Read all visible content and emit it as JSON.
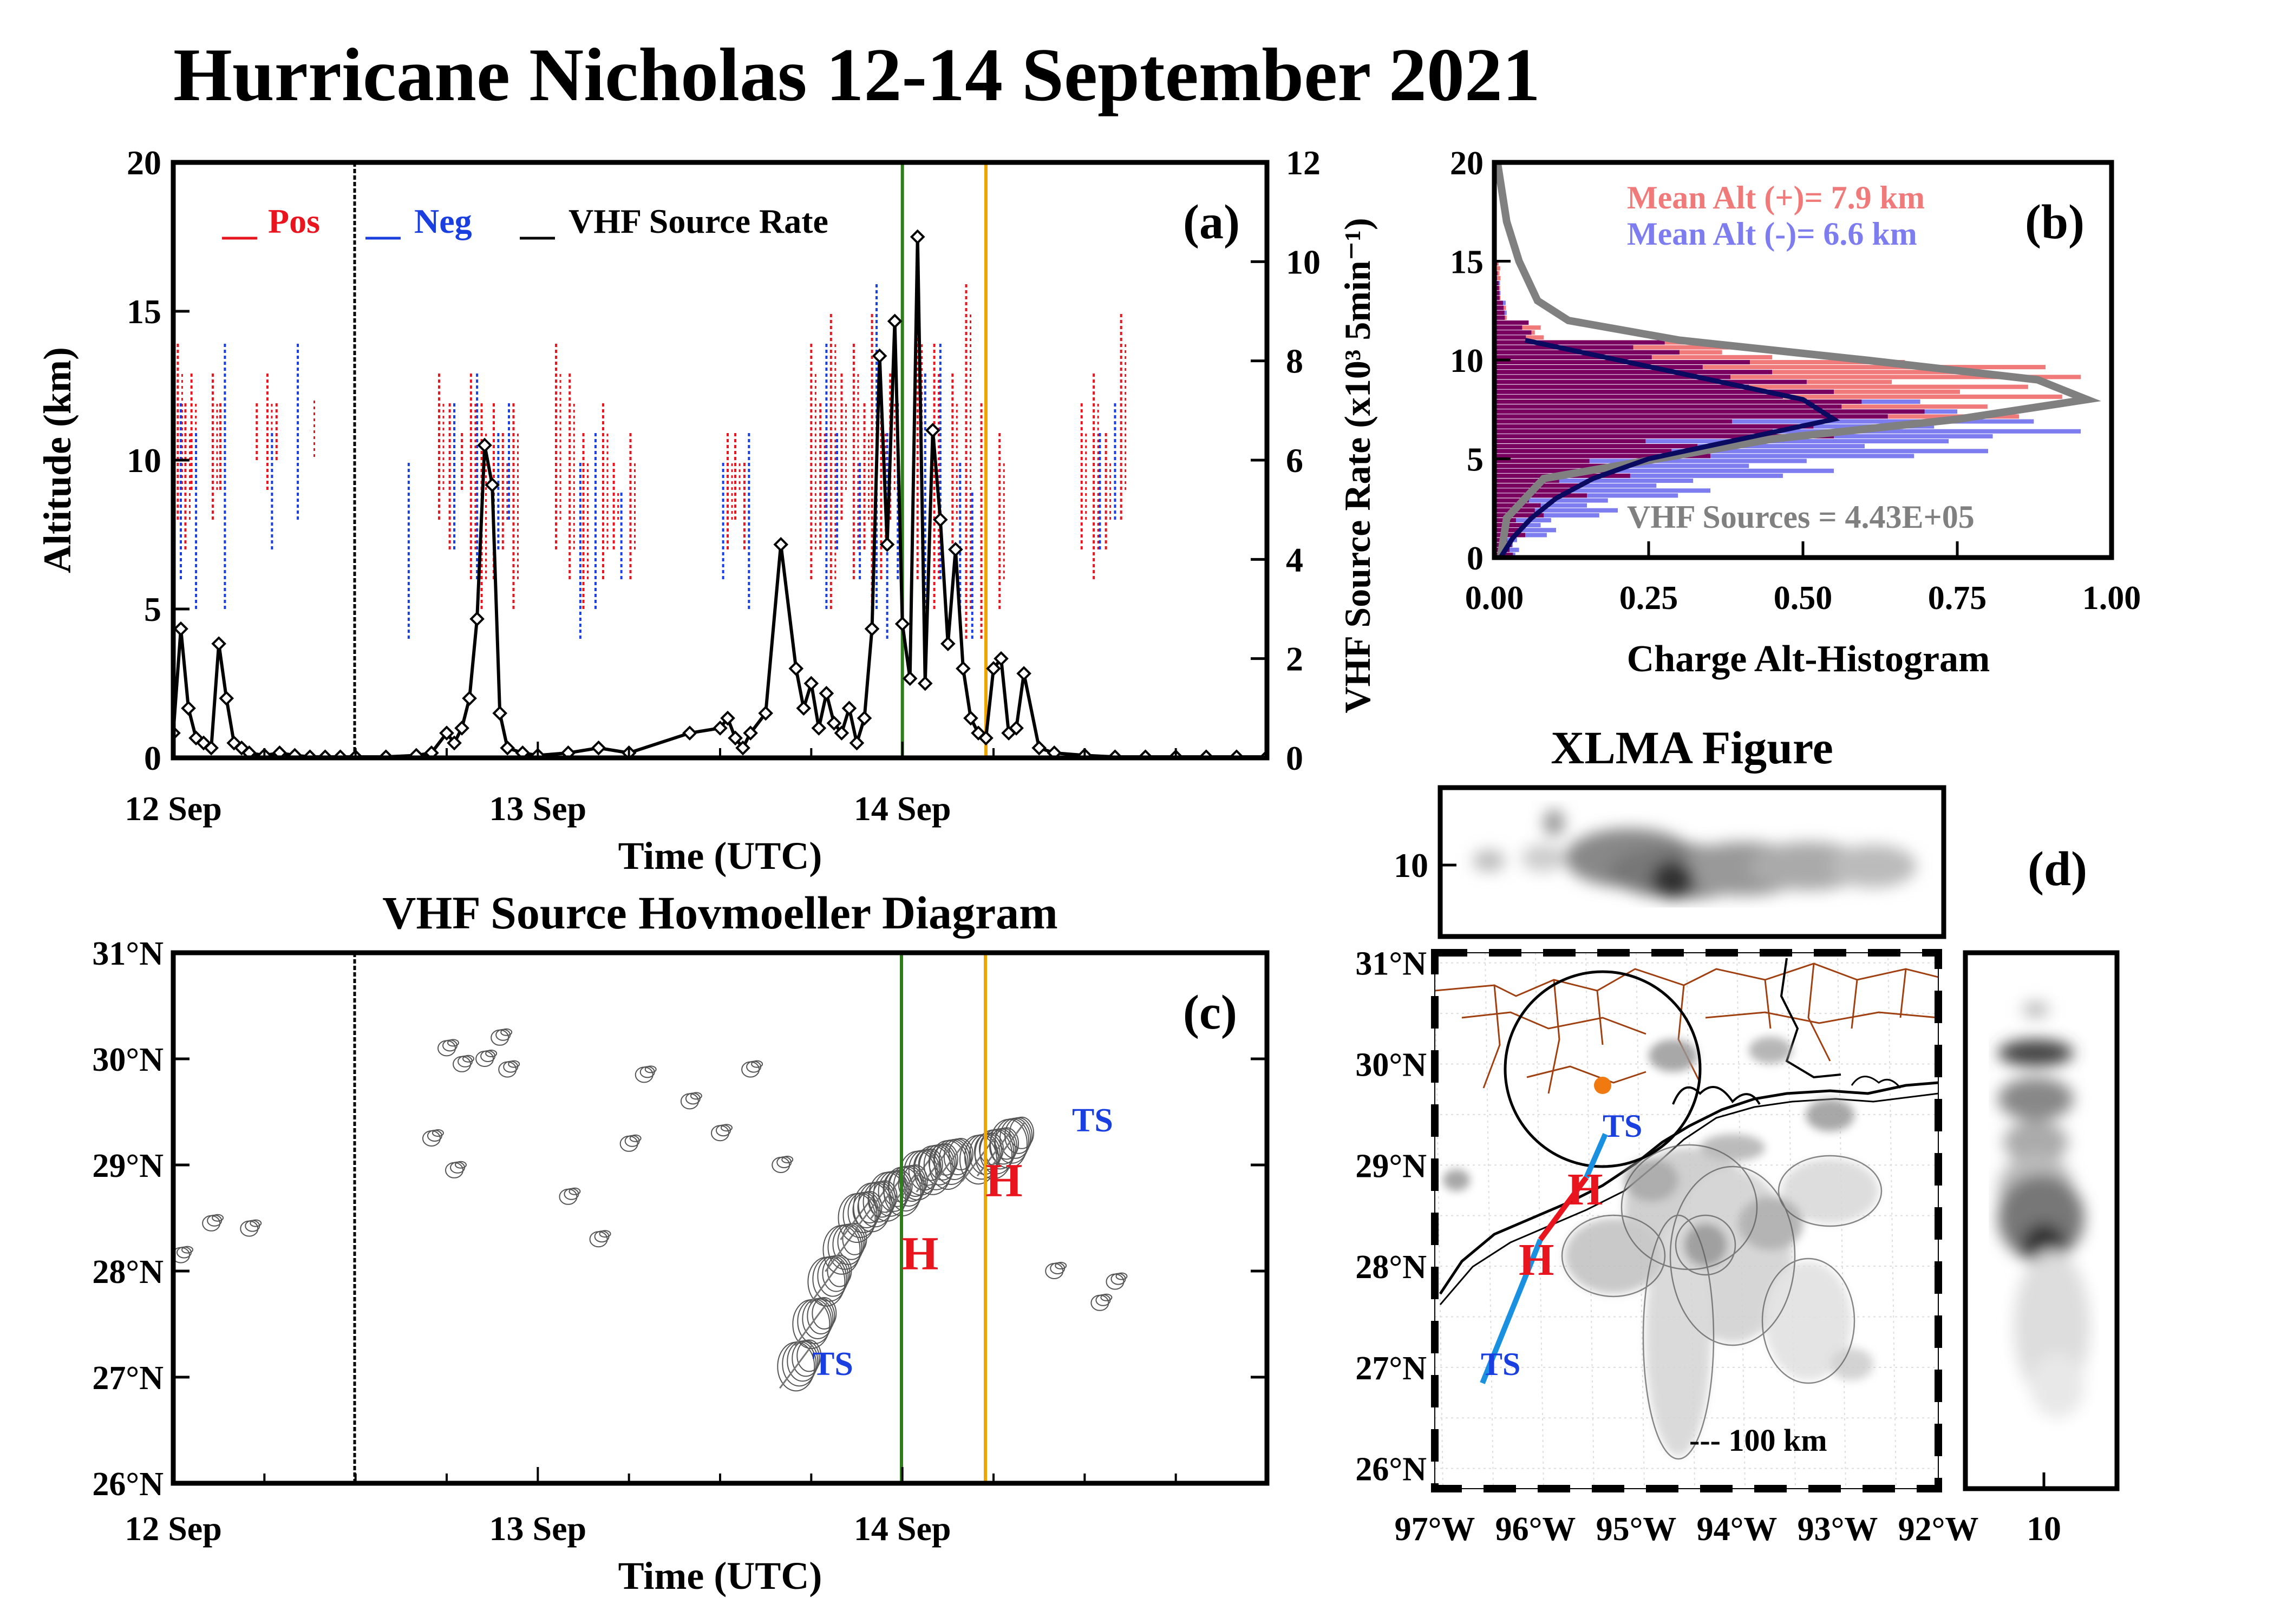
{
  "title": "Hurricane Nicholas 12-14 September 2021",
  "colors": {
    "pos": "#e8141e",
    "neg": "#1a3fe0",
    "vhf": "#000000",
    "green_marker": "#2e7d1a",
    "orange_marker": "#f0a400",
    "hist_pos": "#f07a7a",
    "hist_neg": "#7d7df0",
    "hist_overlap": "#7a0060",
    "vhf_curve": "#808080",
    "neg_curve": "#0a0a60",
    "track_h": "#e8141e",
    "track_ts": "#1a90e0",
    "label_ts": "#1a3fe0",
    "center_dot": "#f07a10"
  },
  "panel_a": {
    "label": "(a)",
    "ylabel": "Altitude (km)",
    "y2label": "VHF Source Rate (x10³ 5min⁻¹)",
    "xlabel": "Time (UTC)",
    "legend": [
      {
        "key": "pos",
        "text": "Pos"
      },
      {
        "key": "neg",
        "text": "Neg"
      },
      {
        "key": "vhf",
        "text": "VHF Source Rate"
      }
    ],
    "yticks": [
      "0",
      "5",
      "10",
      "15",
      "20"
    ],
    "y2ticks": [
      "0",
      "2",
      "4",
      "6",
      "8",
      "10",
      "12"
    ],
    "xticks": [
      "12 Sep",
      "13 Sep",
      "14 Sep"
    ]
  },
  "panel_b": {
    "label": "(b)",
    "xlabel": "Charge Alt-Histogram",
    "xticks": [
      "0.00",
      "0.25",
      "0.50",
      "0.75",
      "1.00"
    ],
    "yticks": [
      "0",
      "5",
      "10",
      "15",
      "20"
    ],
    "mean_pos": "Mean Alt (+)=  7.9 km",
    "mean_neg": "Mean Alt (-)=  6.6 km",
    "vhf_sources": "VHF Sources =  4.43E+05"
  },
  "panel_c": {
    "title": "VHF Source Hovmoeller Diagram",
    "label": "(c)",
    "xlabel": "Time (UTC)",
    "xticks": [
      "12 Sep",
      "13 Sep",
      "14 Sep"
    ],
    "yticks": [
      "26°N",
      "27°N",
      "28°N",
      "29°N",
      "30°N",
      "31°N"
    ],
    "markers": [
      {
        "text": "TS",
        "kind": "ts"
      },
      {
        "text": "H",
        "kind": "h"
      },
      {
        "text": "H",
        "kind": "h"
      },
      {
        "text": "TS",
        "kind": "ts"
      }
    ]
  },
  "panel_d": {
    "title": "XLMA Figure",
    "label": "(d)",
    "top_ytick": "10",
    "right_xtick": "10",
    "scale": "--- 100 km",
    "yticks": [
      "26°N",
      "27°N",
      "28°N",
      "29°N",
      "30°N",
      "31°N"
    ],
    "xticks": [
      "97°W",
      "96°W",
      "95°W",
      "94°W",
      "93°W",
      "92°W"
    ],
    "track_labels": [
      {
        "text": "TS",
        "kind": "ts"
      },
      {
        "text": "H",
        "kind": "h"
      },
      {
        "text": "H",
        "kind": "h"
      },
      {
        "text": "TS",
        "kind": "ts"
      }
    ]
  },
  "chart_data": [
    {
      "panel": "a",
      "type": "line",
      "x_unit": "hours since 12 Sep 00 UTC",
      "xlim": [
        0,
        72
      ],
      "ylim": [
        0,
        20
      ],
      "y2lim": [
        0,
        12
      ],
      "markers_at_hours": {
        "black": 12,
        "green": 48,
        "orange": 53.5
      },
      "series": [
        {
          "name": "VHF Source Rate",
          "x": [
            0,
            0.5,
            1,
            1.5,
            2,
            2.5,
            3,
            3.5,
            4,
            4.5,
            5,
            6,
            7,
            8,
            9,
            10,
            11,
            12,
            14,
            16,
            17,
            18,
            18.5,
            19,
            19.5,
            20,
            20.5,
            21,
            21.5,
            22,
            23,
            24,
            26,
            28,
            30,
            34,
            36,
            36.5,
            37,
            37.5,
            38,
            39,
            40,
            41,
            41.5,
            42,
            42.5,
            43,
            43.5,
            44,
            44.5,
            45,
            45.5,
            46,
            46.5,
            47,
            47.5,
            48,
            48.5,
            49,
            49.5,
            50,
            50.5,
            51,
            51.5,
            52,
            52.5,
            53,
            53.5,
            54,
            54.5,
            55,
            55.5,
            56,
            57,
            58,
            60,
            62,
            64,
            66,
            68,
            70,
            72
          ],
          "y": [
            0.5,
            2.6,
            1.0,
            0.4,
            0.3,
            0.2,
            2.3,
            1.2,
            0.3,
            0.2,
            0.1,
            0.05,
            0.1,
            0.05,
            0.02,
            0.02,
            0.02,
            0.02,
            0.02,
            0.05,
            0.1,
            0.5,
            0.3,
            0.6,
            1.2,
            2.8,
            6.3,
            5.5,
            0.9,
            0.2,
            0.1,
            0.05,
            0.1,
            0.2,
            0.1,
            0.5,
            0.6,
            0.8,
            0.4,
            0.2,
            0.5,
            0.9,
            4.3,
            1.8,
            1.0,
            1.5,
            0.6,
            1.3,
            0.7,
            0.5,
            1.0,
            0.3,
            0.8,
            2.6,
            8.1,
            4.3,
            8.8,
            2.7,
            1.6,
            10.5,
            1.5,
            6.6,
            4.8,
            2.3,
            4.2,
            1.8,
            0.8,
            0.5,
            0.4,
            1.8,
            2.0,
            0.5,
            0.6,
            1.7,
            0.2,
            0.1,
            0.05,
            0.02,
            0.02,
            0.02,
            0.02,
            0.02,
            0.02
          ]
        },
        {
          "name": "Pos",
          "x": [
            0.3,
            0.8,
            1.2,
            2.6,
            3.1,
            5.5,
            6.2,
            6.8,
            9.0,
            17.5,
            18.2,
            19.0,
            19.6,
            20.3,
            21.1,
            21.7,
            22.4,
            25.2,
            26.1,
            27.0,
            28.3,
            29.0,
            30.1,
            36.5,
            37.0,
            37.6,
            42.0,
            42.6,
            43.3,
            44.0,
            44.8,
            45.5,
            46.0,
            46.6,
            47.2,
            49.0,
            50.1,
            51.3,
            52.2,
            53.2,
            54.4,
            59.8,
            60.6,
            61.4,
            62.4
          ],
          "ylow": [
            8,
            7,
            9,
            8,
            9,
            10,
            9,
            10,
            11,
            8,
            7,
            9,
            6,
            5,
            6,
            7,
            5,
            7,
            6,
            5,
            6,
            7,
            6,
            7,
            8,
            7,
            6,
            7,
            5,
            8,
            6,
            7,
            5,
            6,
            8,
            6,
            5,
            7,
            4,
            4,
            5,
            7,
            6,
            7,
            8
          ],
          "yhigh": [
            14,
            12,
            13,
            13,
            12,
            12,
            13,
            12,
            11,
            13,
            12,
            11,
            13,
            12,
            12,
            11,
            12,
            14,
            13,
            11,
            12,
            10,
            11,
            11,
            11,
            10,
            14,
            12,
            15,
            13,
            14,
            12,
            15,
            12,
            13,
            15,
            14,
            13,
            16,
            12,
            11,
            12,
            13,
            11,
            15
          ]
        },
        {
          "name": "Neg",
          "x": [
            0.5,
            1.5,
            3.4,
            6.5,
            8.2,
            15.5,
            18.5,
            20.0,
            21.4,
            22.1,
            26.8,
            27.8,
            29.5,
            36.2,
            37.9,
            43.0,
            43.7,
            45.2,
            46.3,
            47.0,
            47.7,
            49.5,
            50.5,
            51.8,
            52.6,
            61.0,
            62.0
          ],
          "ylow": [
            6,
            5,
            5,
            7,
            8,
            4,
            7,
            6,
            7,
            8,
            4,
            5,
            6,
            6,
            5,
            5,
            7,
            6,
            5,
            4,
            6,
            5,
            6,
            5,
            4,
            7,
            8
          ],
          "yhigh": [
            12,
            11,
            14,
            11,
            14,
            10,
            12,
            13,
            11,
            12,
            10,
            11,
            9,
            10,
            11,
            14,
            11,
            10,
            16,
            11,
            12,
            13,
            14,
            10,
            9,
            11,
            12
          ]
        }
      ]
    },
    {
      "panel": "b",
      "type": "bar",
      "xlabel": "Charge Alt-Histogram",
      "xlim": [
        0,
        1
      ],
      "ylim": [
        0,
        20
      ],
      "altitudes_km": [
        0.5,
        1.5,
        2.5,
        3.5,
        4.5,
        5.5,
        6.5,
        7.5,
        8.5,
        9.5,
        10.5,
        11.5,
        12.5,
        13.5,
        14.5
      ],
      "series": [
        {
          "name": "Mean Alt (+)",
          "values": [
            0.03,
            0.05,
            0.08,
            0.15,
            0.22,
            0.35,
            0.55,
            0.85,
            0.92,
            0.95,
            0.45,
            0.08,
            0.02,
            0.01,
            0.01
          ]
        },
        {
          "name": "Mean Alt (-)",
          "values": [
            0.04,
            0.1,
            0.2,
            0.35,
            0.55,
            0.8,
            0.95,
            0.75,
            0.55,
            0.45,
            0.3,
            0.06,
            0.02,
            0.01,
            0.005
          ]
        }
      ],
      "curves": [
        {
          "name": "VHF Sources",
          "alt": [
            0,
            2,
            4,
            6,
            7,
            8,
            9,
            10,
            11,
            12,
            13,
            15,
            17,
            19,
            20
          ],
          "x": [
            0.01,
            0.02,
            0.08,
            0.45,
            0.75,
            0.96,
            0.88,
            0.6,
            0.3,
            0.12,
            0.07,
            0.04,
            0.02,
            0.01,
            0.005
          ]
        },
        {
          "name": "Neg",
          "alt": [
            0,
            1,
            2,
            3,
            4,
            5,
            6,
            7,
            8,
            9,
            10,
            11
          ],
          "x": [
            0.01,
            0.03,
            0.06,
            0.1,
            0.16,
            0.25,
            0.4,
            0.55,
            0.5,
            0.35,
            0.2,
            0.05
          ]
        }
      ]
    },
    {
      "panel": "c",
      "type": "scatter",
      "xlim": [
        0,
        72
      ],
      "ylim": [
        26,
        31
      ],
      "x_unit": "hours since 12 Sep 00 UTC",
      "clusters": [
        {
          "x": 0.5,
          "y": 28.15
        },
        {
          "x": 2.5,
          "y": 28.45
        },
        {
          "x": 5,
          "y": 28.4
        },
        {
          "x": 17,
          "y": 29.25
        },
        {
          "x": 18,
          "y": 30.1
        },
        {
          "x": 19,
          "y": 29.95
        },
        {
          "x": 20.5,
          "y": 30.0
        },
        {
          "x": 21.5,
          "y": 30.2
        },
        {
          "x": 22,
          "y": 29.9
        },
        {
          "x": 18.5,
          "y": 28.95
        },
        {
          "x": 26,
          "y": 28.7
        },
        {
          "x": 28,
          "y": 28.3
        },
        {
          "x": 30,
          "y": 29.2
        },
        {
          "x": 31,
          "y": 29.85
        },
        {
          "x": 34,
          "y": 29.6
        },
        {
          "x": 36,
          "y": 29.3
        },
        {
          "x": 38,
          "y": 29.9
        },
        {
          "x": 40,
          "y": 29.0
        },
        {
          "x": 41,
          "y": 27.1
        },
        {
          "x": 42,
          "y": 27.5
        },
        {
          "x": 43,
          "y": 27.9
        },
        {
          "x": 44,
          "y": 28.2
        },
        {
          "x": 45,
          "y": 28.5
        },
        {
          "x": 46,
          "y": 28.6
        },
        {
          "x": 47,
          "y": 28.7
        },
        {
          "x": 48,
          "y": 28.75
        },
        {
          "x": 49,
          "y": 28.9
        },
        {
          "x": 50,
          "y": 28.95
        },
        {
          "x": 51,
          "y": 29.0
        },
        {
          "x": 53,
          "y": 29.05
        },
        {
          "x": 54,
          "y": 29.1
        },
        {
          "x": 55,
          "y": 29.2
        },
        {
          "x": 58,
          "y": 28.0
        },
        {
          "x": 61,
          "y": 27.7
        },
        {
          "x": 62,
          "y": 27.9
        }
      ]
    }
  ]
}
